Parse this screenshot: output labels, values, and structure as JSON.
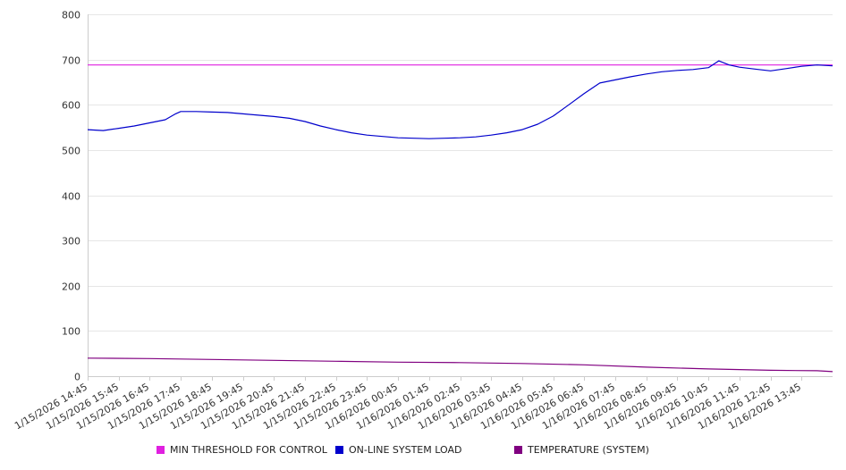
{
  "chart_data": {
    "type": "line",
    "title": "",
    "xlabel": "",
    "ylabel": "",
    "ylim": [
      0,
      800
    ],
    "y_ticks": [
      "0",
      "100",
      "200",
      "300",
      "400",
      "500",
      "600",
      "700",
      "800"
    ],
    "grid": "horizontal",
    "legend_position": "bottom",
    "x_ticks": [
      "1/15/2026 14:45",
      "1/15/2026 15:45",
      "1/15/2026 16:45",
      "1/15/2026 17:45",
      "1/15/2026 18:45",
      "1/15/2026 19:45",
      "1/15/2026 20:45",
      "1/15/2026 21:45",
      "1/15/2026 22:45",
      "1/15/2026 23:45",
      "1/16/2026 00:45",
      "1/16/2026 01:45",
      "1/16/2026 02:45",
      "1/16/2026 03:45",
      "1/16/2026 04:45",
      "1/16/2026 05:45",
      "1/16/2026 06:45",
      "1/16/2026 07:45",
      "1/16/2026 08:45",
      "1/16/2026 09:45",
      "1/16/2026 10:45",
      "1/16/2026 11:45",
      "1/16/2026 12:45",
      "1/16/2026 13:45"
    ],
    "x_end": "1/16/2026 14:45",
    "series": [
      {
        "name": "MIN THRESHOLD FOR CONTROL",
        "color": "#e020e0",
        "points": [
          {
            "x": "1/15/2026 14:45",
            "y": 688
          },
          {
            "x": "1/16/2026 14:45",
            "y": 688
          }
        ]
      },
      {
        "name": "ON-LINE SYSTEM LOAD",
        "color": "#0000cc",
        "points": [
          {
            "x": "1/15/2026 14:45",
            "y": 545
          },
          {
            "x": "1/15/2026 15:15",
            "y": 543
          },
          {
            "x": "1/15/2026 15:45",
            "y": 548
          },
          {
            "x": "1/15/2026 16:15",
            "y": 553
          },
          {
            "x": "1/15/2026 16:45",
            "y": 560
          },
          {
            "x": "1/15/2026 17:15",
            "y": 567
          },
          {
            "x": "1/15/2026 17:35",
            "y": 580
          },
          {
            "x": "1/15/2026 17:45",
            "y": 585
          },
          {
            "x": "1/15/2026 18:15",
            "y": 585
          },
          {
            "x": "1/15/2026 18:45",
            "y": 584
          },
          {
            "x": "1/15/2026 19:15",
            "y": 583
          },
          {
            "x": "1/15/2026 19:45",
            "y": 580
          },
          {
            "x": "1/15/2026 20:15",
            "y": 577
          },
          {
            "x": "1/15/2026 20:45",
            "y": 574
          },
          {
            "x": "1/15/2026 21:15",
            "y": 570
          },
          {
            "x": "1/15/2026 21:45",
            "y": 563
          },
          {
            "x": "1/15/2026 22:15",
            "y": 553
          },
          {
            "x": "1/15/2026 22:45",
            "y": 545
          },
          {
            "x": "1/15/2026 23:15",
            "y": 538
          },
          {
            "x": "1/15/2026 23:45",
            "y": 533
          },
          {
            "x": "1/16/2026 00:15",
            "y": 530
          },
          {
            "x": "1/16/2026 00:45",
            "y": 527
          },
          {
            "x": "1/16/2026 01:15",
            "y": 526
          },
          {
            "x": "1/16/2026 01:45",
            "y": 525
          },
          {
            "x": "1/16/2026 02:15",
            "y": 526
          },
          {
            "x": "1/16/2026 02:45",
            "y": 527
          },
          {
            "x": "1/16/2026 03:15",
            "y": 529
          },
          {
            "x": "1/16/2026 03:45",
            "y": 533
          },
          {
            "x": "1/16/2026 04:15",
            "y": 538
          },
          {
            "x": "1/16/2026 04:45",
            "y": 545
          },
          {
            "x": "1/16/2026 05:15",
            "y": 557
          },
          {
            "x": "1/16/2026 05:45",
            "y": 575
          },
          {
            "x": "1/16/2026 06:15",
            "y": 600
          },
          {
            "x": "1/16/2026 06:45",
            "y": 625
          },
          {
            "x": "1/16/2026 07:15",
            "y": 648
          },
          {
            "x": "1/16/2026 07:45",
            "y": 655
          },
          {
            "x": "1/16/2026 08:15",
            "y": 662
          },
          {
            "x": "1/16/2026 08:45",
            "y": 668
          },
          {
            "x": "1/16/2026 09:15",
            "y": 673
          },
          {
            "x": "1/16/2026 09:45",
            "y": 676
          },
          {
            "x": "1/16/2026 10:15",
            "y": 678
          },
          {
            "x": "1/16/2026 10:45",
            "y": 682
          },
          {
            "x": "1/16/2026 11:05",
            "y": 697
          },
          {
            "x": "1/16/2026 11:25",
            "y": 688
          },
          {
            "x": "1/16/2026 11:45",
            "y": 683
          },
          {
            "x": "1/16/2026 12:15",
            "y": 679
          },
          {
            "x": "1/16/2026 12:45",
            "y": 675
          },
          {
            "x": "1/16/2026 13:15",
            "y": 680
          },
          {
            "x": "1/16/2026 13:45",
            "y": 685
          },
          {
            "x": "1/16/2026 14:15",
            "y": 688
          },
          {
            "x": "1/16/2026 14:45",
            "y": 686
          }
        ]
      },
      {
        "name": "TEMPERATURE (SYSTEM)",
        "color": "#800080",
        "points": [
          {
            "x": "1/15/2026 14:45",
            "y": 40
          },
          {
            "x": "1/15/2026 16:45",
            "y": 39
          },
          {
            "x": "1/15/2026 18:45",
            "y": 37
          },
          {
            "x": "1/15/2026 20:45",
            "y": 35
          },
          {
            "x": "1/15/2026 22:45",
            "y": 33
          },
          {
            "x": "1/16/2026 00:45",
            "y": 31
          },
          {
            "x": "1/16/2026 02:45",
            "y": 30
          },
          {
            "x": "1/16/2026 04:45",
            "y": 28
          },
          {
            "x": "1/16/2026 06:45",
            "y": 25
          },
          {
            "x": "1/16/2026 08:45",
            "y": 20
          },
          {
            "x": "1/16/2026 10:45",
            "y": 16
          },
          {
            "x": "1/16/2026 12:45",
            "y": 13
          },
          {
            "x": "1/16/2026 14:15",
            "y": 12
          },
          {
            "x": "1/16/2026 14:45",
            "y": 10
          }
        ]
      }
    ]
  }
}
